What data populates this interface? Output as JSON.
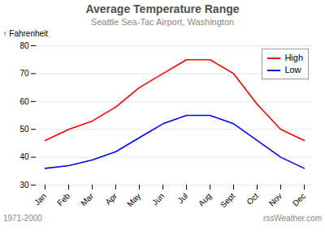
{
  "chart_data": {
    "type": "line",
    "title": "Average Temperature Range",
    "subtitle": "Seattle Sea-Tac Airport, Washington",
    "categories": [
      "Jan",
      "Feb",
      "Mar",
      "Apr",
      "May",
      "Jun",
      "Jul",
      "Aug",
      "Sept",
      "Oct",
      "Nov",
      "Dec"
    ],
    "series": [
      {
        "name": "High",
        "color": "#ff0000",
        "values": [
          46,
          50,
          53,
          58,
          65,
          70,
          75,
          75,
          70,
          59,
          50,
          46
        ]
      },
      {
        "name": "Low",
        "color": "#0000ff",
        "values": [
          36,
          37,
          39,
          42,
          47,
          52,
          55,
          55,
          52,
          46,
          40,
          36
        ]
      }
    ],
    "ylabel": "Fahrenheit",
    "ylim": [
      30,
      80
    ],
    "yticks": [
      30,
      40,
      50,
      60,
      70,
      80
    ],
    "grid": true,
    "legend": "upper right",
    "annotations": [
      "1971-2000",
      "rssWeather.com"
    ]
  }
}
